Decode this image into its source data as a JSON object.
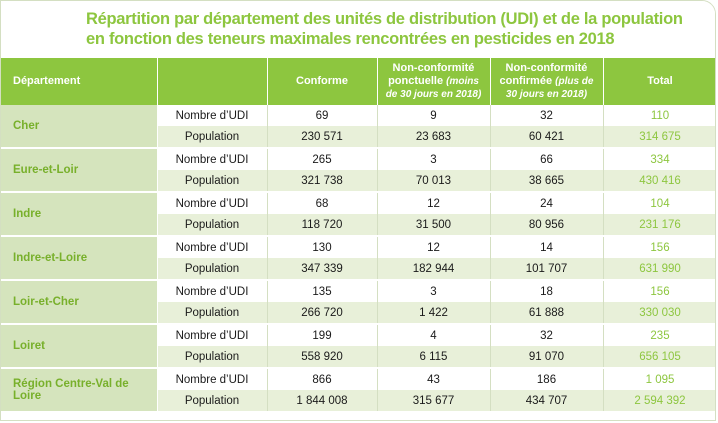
{
  "title": {
    "line1": "Répartition par département des unités de distribution (UDI) et de la population",
    "line2": "en fonction des teneurs maximales rencontrées en pesticides en 2018"
  },
  "headers": {
    "departement": "Département",
    "metric": "",
    "conforme": "Conforme",
    "ponctuelle_main": "Non-conformité ponctuelle",
    "ponctuelle_note": "(moins de 30 jours en 2018)",
    "confirmee_main": "Non-conformité confirmée",
    "confirmee_note": "(plus de 30 jours en 2018)",
    "total": "Total"
  },
  "rows": [
    {
      "dept": "Cher",
      "udi": {
        "label": "Nombre d’UDI",
        "conforme": "69",
        "ponctuelle": "9",
        "confirmee": "32",
        "total": "110"
      },
      "pop": {
        "label": "Population",
        "conforme": "230 571",
        "ponctuelle": "23 683",
        "confirmee": "60 421",
        "total": "314 675"
      }
    },
    {
      "dept": "Eure-et-Loir",
      "udi": {
        "label": "Nombre d’UDI",
        "conforme": "265",
        "ponctuelle": "3",
        "confirmee": "66",
        "total": "334"
      },
      "pop": {
        "label": "Population",
        "conforme": "321 738",
        "ponctuelle": "70 013",
        "confirmee": "38 665",
        "total": "430 416"
      }
    },
    {
      "dept": "Indre",
      "udi": {
        "label": "Nombre d’UDI",
        "conforme": "68",
        "ponctuelle": "12",
        "confirmee": "24",
        "total": "104"
      },
      "pop": {
        "label": "Population",
        "conforme": "118 720",
        "ponctuelle": "31 500",
        "confirmee": "80 956",
        "total": "231 176"
      }
    },
    {
      "dept": "Indre-et-Loire",
      "udi": {
        "label": "Nombre d’UDI",
        "conforme": "130",
        "ponctuelle": "12",
        "confirmee": "14",
        "total": "156"
      },
      "pop": {
        "label": "Population",
        "conforme": "347 339",
        "ponctuelle": "182 944",
        "confirmee": "101 707",
        "total": "631 990"
      }
    },
    {
      "dept": "Loir-et-Cher",
      "udi": {
        "label": "Nombre d’UDI",
        "conforme": "135",
        "ponctuelle": "3",
        "confirmee": "18",
        "total": "156"
      },
      "pop": {
        "label": "Population",
        "conforme": "266 720",
        "ponctuelle": "1 422",
        "confirmee": "61 888",
        "total": "330 030"
      }
    },
    {
      "dept": "Loiret",
      "udi": {
        "label": "Nombre d’UDI",
        "conforme": "199",
        "ponctuelle": "4",
        "confirmee": "32",
        "total": "235"
      },
      "pop": {
        "label": "Population",
        "conforme": "558 920",
        "ponctuelle": "6 115",
        "confirmee": "91 070",
        "total": "656 105"
      }
    },
    {
      "dept": "Région Centre-Val de Loire",
      "udi": {
        "label": "Nombre d’UDI",
        "conforme": "866",
        "ponctuelle": "43",
        "confirmee": "186",
        "total": "1 095"
      },
      "pop": {
        "label": "Population",
        "conforme": "1 844 008",
        "ponctuelle": "315 677",
        "confirmee": "434 707",
        "total": "2 594 392"
      }
    }
  ],
  "colors": {
    "accent": "#8dc63f",
    "dept_band": "#d5e4bd",
    "pop_row": "#e8f0d9"
  }
}
